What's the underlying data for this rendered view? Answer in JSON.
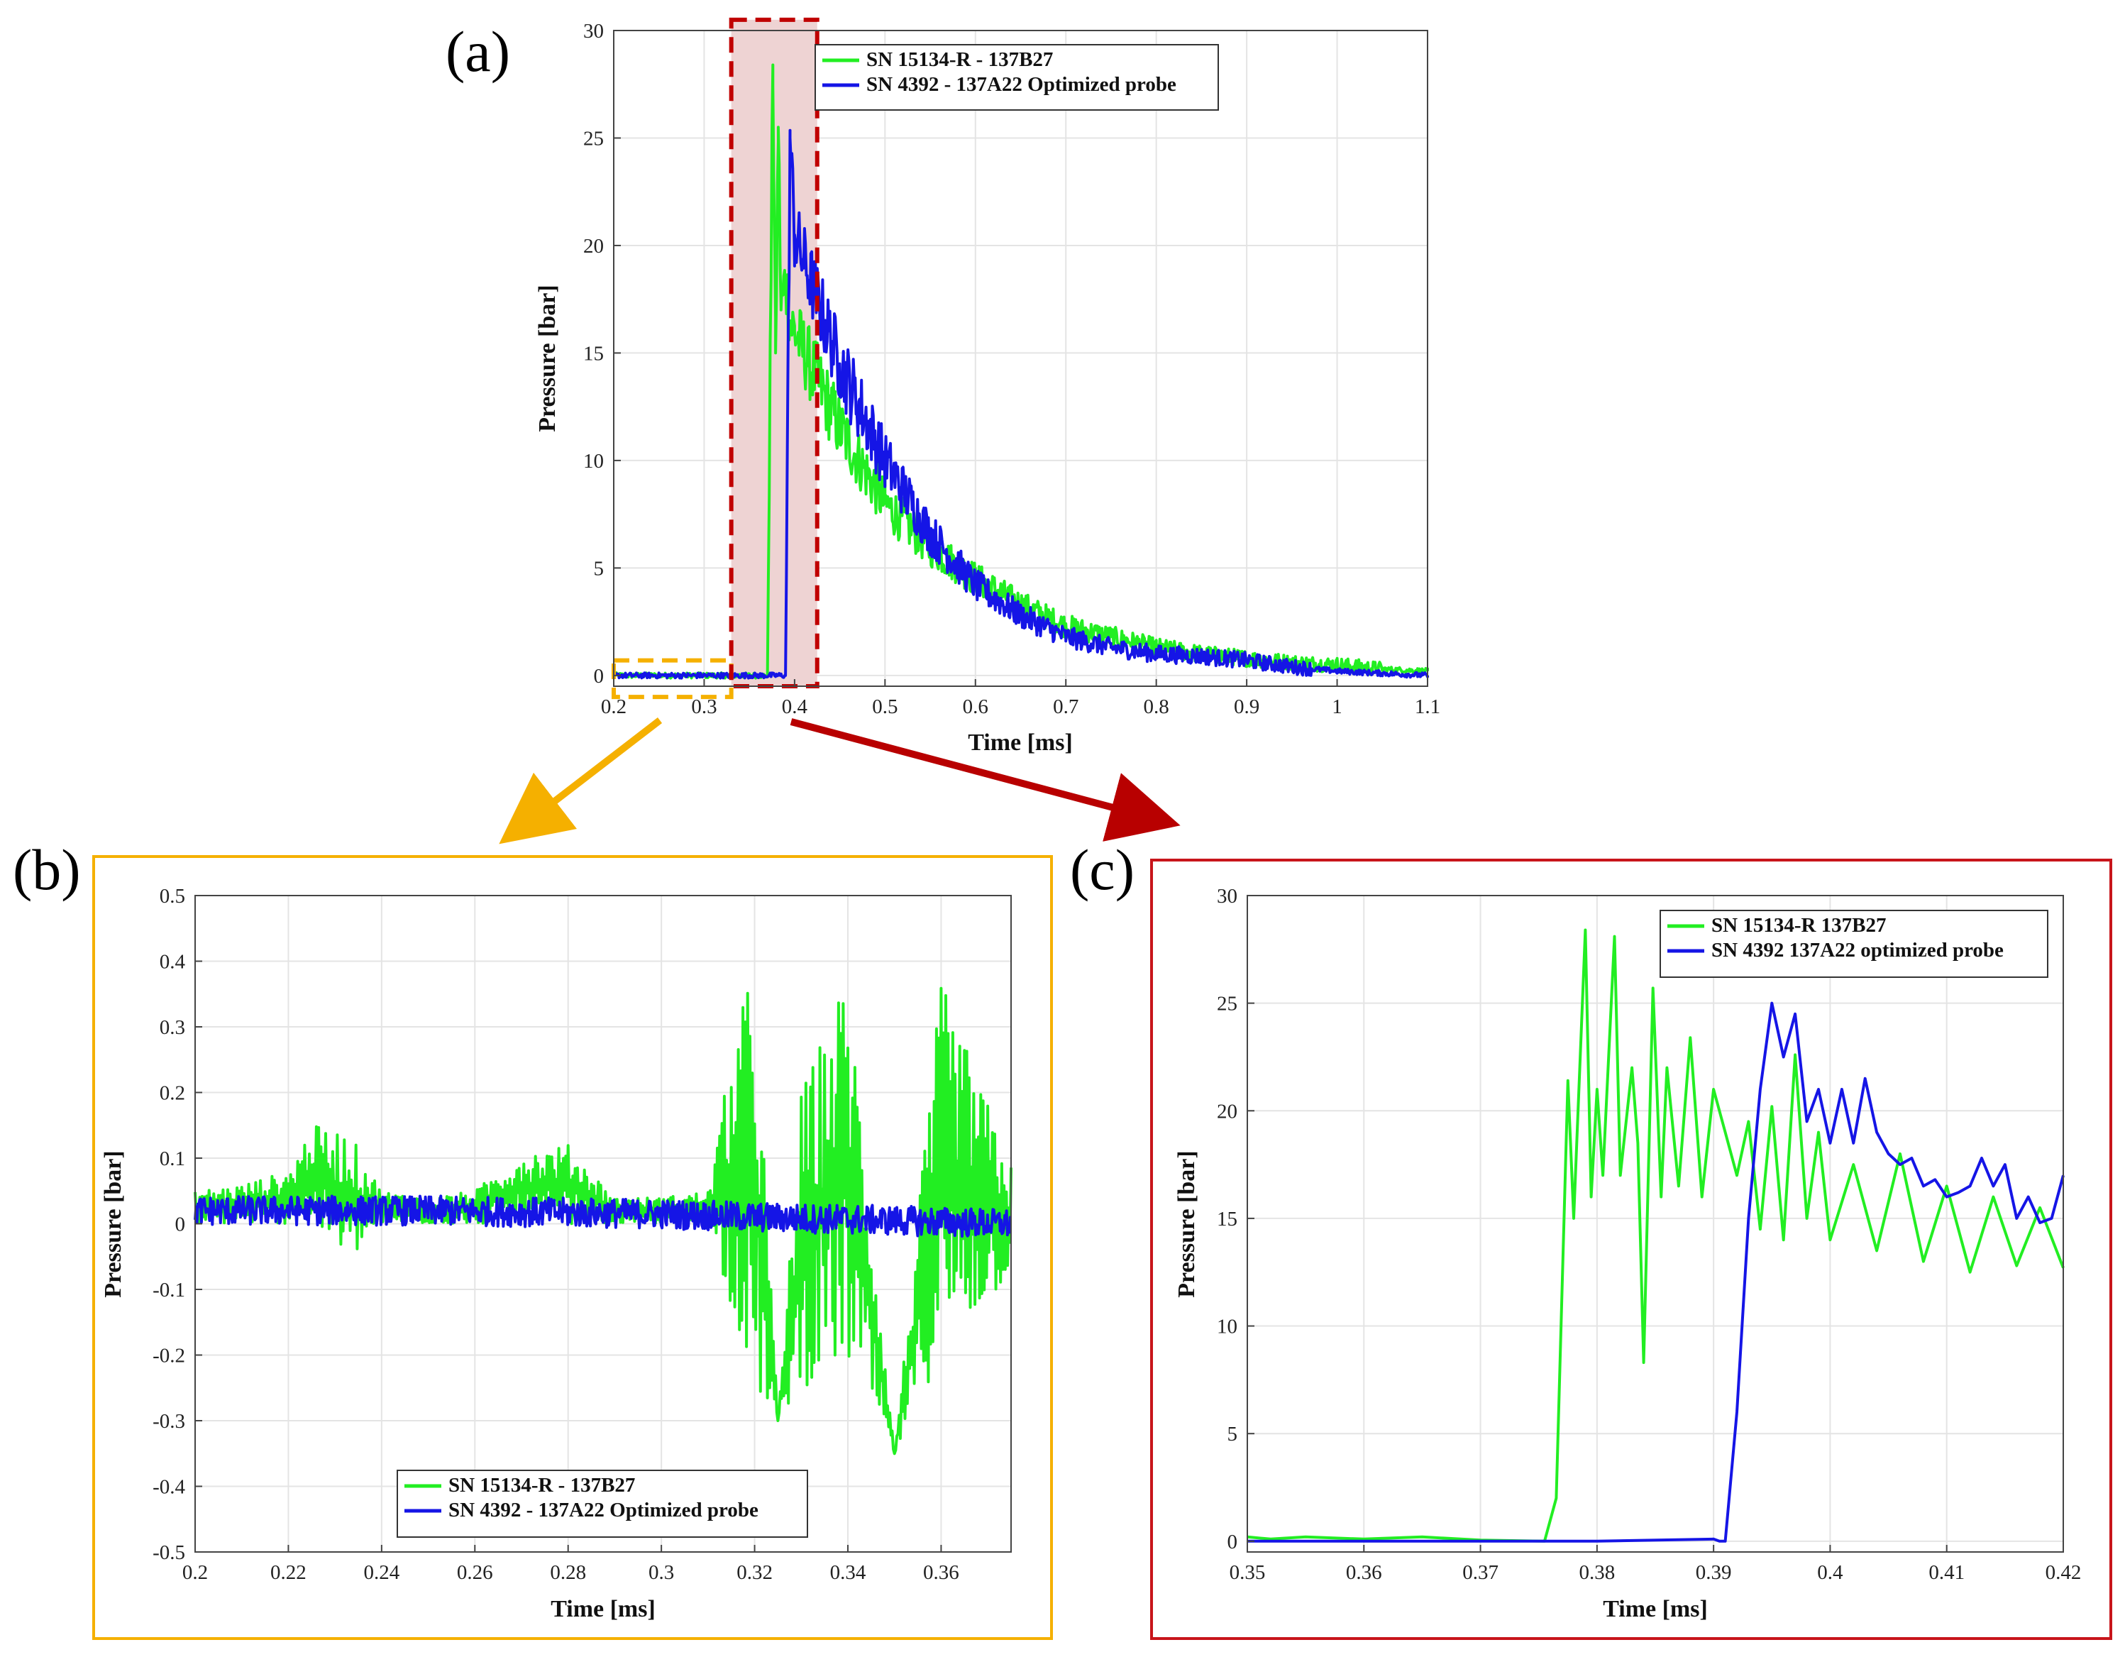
{
  "colors": {
    "series_green": "#22ee22",
    "series_blue": "#1515e6",
    "grid": "#e4e4e4",
    "axis": "#444444",
    "highlight_red": "#c00000",
    "highlight_fill": "#eed3d3",
    "highlight_orange": "#f5b000",
    "arrow_orange": "#f5b000",
    "arrow_red": "#b80000",
    "frame_orange": "#f5b000",
    "frame_red": "#c8151b"
  },
  "panels": {
    "a": {
      "label": "(a)"
    },
    "b": {
      "label": "(b)"
    },
    "c": {
      "label": "(c)"
    }
  },
  "chart_data": [
    {
      "id": "a",
      "type": "line",
      "title": "",
      "xlabel": "Time [ms]",
      "ylabel": "Pressure [bar]",
      "xlim": [
        0.2,
        1.1
      ],
      "ylim": [
        -0.5,
        30
      ],
      "xticks": [
        0.2,
        0.3,
        0.4,
        0.5,
        0.6,
        0.7,
        0.8,
        0.9,
        1,
        1.1
      ],
      "xtick_labels": [
        "0.2",
        "0.3",
        "0.4",
        "0.5",
        "0.6",
        "0.7",
        "0.8",
        "0.9",
        "1",
        "1.1"
      ],
      "yticks": [
        0,
        5,
        10,
        15,
        20,
        25,
        30
      ],
      "ytick_labels": [
        "0",
        "5",
        "10",
        "15",
        "20",
        "25",
        "30"
      ],
      "grid": true,
      "legend_position": "top-right",
      "legend": [
        "SN 15134-R - 137B27",
        "SN 4392 - 137A22 Optimized probe"
      ],
      "highlight_regions": [
        {
          "name": "zoom-b",
          "x": [
            0.2,
            0.33
          ],
          "y": [
            -1.0,
            0.7
          ],
          "color": "orange"
        },
        {
          "name": "zoom-c",
          "x": [
            0.33,
            0.425
          ],
          "y": [
            -0.5,
            30.5
          ],
          "color": "red"
        }
      ],
      "series": [
        {
          "name": "SN 15134-R - 137B27",
          "color": "green",
          "x": [
            0.2,
            0.37,
            0.376,
            0.379,
            0.382,
            0.385,
            0.39,
            0.395,
            0.4,
            0.45,
            0.5,
            0.55,
            0.6,
            0.65,
            0.7,
            0.75,
            0.8,
            0.85,
            0.9,
            0.95,
            1.0,
            1.05,
            1.1
          ],
          "y": [
            0.0,
            0.0,
            28.4,
            15.0,
            25.5,
            17.0,
            18.5,
            16.5,
            16.0,
            11.5,
            8.0,
            6.0,
            4.5,
            3.3,
            2.3,
            1.8,
            1.3,
            1.0,
            0.8,
            0.6,
            0.5,
            0.3,
            0.2
          ]
        },
        {
          "name": "SN 4392 - 137A22 Optimized probe",
          "color": "blue",
          "x": [
            0.2,
            0.39,
            0.395,
            0.4,
            0.45,
            0.5,
            0.55,
            0.6,
            0.65,
            0.7,
            0.75,
            0.8,
            0.85,
            0.9,
            0.95,
            1.0,
            1.05,
            1.1
          ],
          "y": [
            0.0,
            0.0,
            25.0,
            20.5,
            14.5,
            10.0,
            6.6,
            4.2,
            2.8,
            1.8,
            1.3,
            1.0,
            0.9,
            0.7,
            0.4,
            0.2,
            0.1,
            0.0
          ]
        }
      ]
    },
    {
      "id": "b",
      "type": "line",
      "title": "",
      "xlabel": "Time [ms]",
      "ylabel": "Pressure [bar]",
      "xlim": [
        0.2,
        0.375
      ],
      "ylim": [
        -0.5,
        0.5
      ],
      "xticks": [
        0.2,
        0.22,
        0.24,
        0.26,
        0.28,
        0.3,
        0.32,
        0.34,
        0.36
      ],
      "xtick_labels": [
        "0.2",
        "0.22",
        "0.24",
        "0.26",
        "0.28",
        "0.3",
        "0.32",
        "0.34",
        "0.36"
      ],
      "yticks": [
        -0.5,
        -0.4,
        -0.3,
        -0.2,
        -0.1,
        0,
        0.1,
        0.2,
        0.3,
        0.4,
        0.5
      ],
      "ytick_labels": [
        "-0.5",
        "-0.4",
        "-0.3",
        "-0.2",
        "-0.1",
        "0",
        "0.1",
        "0.2",
        "0.3",
        "0.4",
        "0.5"
      ],
      "grid": true,
      "legend_position": "bottom-center",
      "legend": [
        "SN 15134-R - 137B27",
        "SN 4392 - 137A22 Optimized probe"
      ],
      "series": [
        {
          "name": "SN 15134-R - 137B27",
          "color": "green",
          "x": [
            0.2,
            0.21,
            0.22,
            0.225,
            0.233,
            0.24,
            0.25,
            0.26,
            0.27,
            0.28,
            0.29,
            0.3,
            0.31,
            0.316,
            0.32,
            0.325,
            0.33,
            0.34,
            0.35,
            0.36,
            0.375
          ],
          "y": [
            0.05,
            0.06,
            0.08,
            0.15,
            0.14,
            0.05,
            0.04,
            0.05,
            0.11,
            0.12,
            0.04,
            0.04,
            0.05,
            0.3,
            0.4,
            -0.3,
            0.2,
            0.39,
            -0.35,
            0.37,
            0.09
          ],
          "y_min": [
            0.0,
            0.0,
            0.0,
            0.0,
            -0.06,
            0.0,
            0.0,
            0.0,
            0.0,
            0.0,
            0.0,
            0.0,
            0.0,
            -0.15,
            -0.26,
            -0.3,
            -0.25,
            -0.22,
            -0.35,
            -0.2,
            -0.08
          ]
        },
        {
          "name": "SN 4392 - 137A22 Optimized probe",
          "color": "blue",
          "x": [
            0.2,
            0.25,
            0.3,
            0.32,
            0.35,
            0.375
          ],
          "y": [
            0.02,
            0.02,
            0.015,
            0.01,
            0.005,
            0.0
          ]
        }
      ]
    },
    {
      "id": "c",
      "type": "line",
      "title": "",
      "xlabel": "Time [ms]",
      "ylabel": "Pressure [bar]",
      "xlim": [
        0.35,
        0.42
      ],
      "ylim": [
        -0.5,
        30
      ],
      "xticks": [
        0.35,
        0.36,
        0.37,
        0.38,
        0.39,
        0.4,
        0.41,
        0.42
      ],
      "xtick_labels": [
        "0.35",
        "0.36",
        "0.37",
        "0.38",
        "0.39",
        "0.4",
        "0.41",
        "0.42"
      ],
      "yticks": [
        0,
        5,
        10,
        15,
        20,
        25,
        30
      ],
      "ytick_labels": [
        "0",
        "5",
        "10",
        "15",
        "20",
        "25",
        "30"
      ],
      "grid": true,
      "legend_position": "top-right",
      "legend": [
        "SN 15134-R 137B27",
        "SN 4392 137A22 optimized probe"
      ],
      "series": [
        {
          "name": "SN 15134-R 137B27",
          "color": "green",
          "x": [
            0.35,
            0.352,
            0.355,
            0.36,
            0.365,
            0.37,
            0.3755,
            0.3765,
            0.3775,
            0.378,
            0.379,
            0.3795,
            0.38,
            0.3805,
            0.3815,
            0.382,
            0.383,
            0.3835,
            0.384,
            0.3848,
            0.3855,
            0.386,
            0.387,
            0.388,
            0.389,
            0.39,
            0.391,
            0.392,
            0.393,
            0.394,
            0.395,
            0.396,
            0.397,
            0.398,
            0.399,
            0.4,
            0.402,
            0.404,
            0.406,
            0.408,
            0.41,
            0.412,
            0.414,
            0.416,
            0.418,
            0.42
          ],
          "y": [
            0.2,
            0.1,
            0.2,
            0.1,
            0.2,
            0.05,
            0.0,
            2.0,
            21.4,
            15.0,
            28.4,
            16.0,
            21.0,
            17.0,
            28.1,
            17.0,
            22.0,
            18.5,
            8.3,
            25.7,
            16.0,
            22.0,
            16.5,
            23.4,
            16.0,
            21.0,
            19.0,
            17.0,
            19.5,
            14.5,
            20.2,
            14.0,
            22.6,
            15.0,
            19.0,
            14.0,
            17.5,
            13.5,
            18.0,
            13.0,
            16.5,
            12.5,
            16.0,
            12.8,
            15.5,
            12.7
          ]
        },
        {
          "name": "SN 4392 137A22 optimized probe",
          "color": "blue",
          "x": [
            0.35,
            0.36,
            0.37,
            0.38,
            0.39,
            0.3905,
            0.391,
            0.392,
            0.393,
            0.394,
            0.395,
            0.396,
            0.397,
            0.398,
            0.399,
            0.4,
            0.401,
            0.402,
            0.403,
            0.404,
            0.405,
            0.406,
            0.407,
            0.408,
            0.409,
            0.41,
            0.411,
            0.412,
            0.413,
            0.414,
            0.415,
            0.416,
            0.417,
            0.418,
            0.419,
            0.42
          ],
          "y": [
            0.0,
            0.0,
            0.0,
            0.0,
            0.1,
            0.0,
            0.0,
            6.0,
            15.0,
            21.0,
            25.0,
            22.5,
            24.5,
            19.5,
            21.0,
            18.5,
            21.0,
            18.5,
            21.5,
            19.0,
            18.0,
            17.5,
            17.8,
            16.5,
            16.8,
            16.0,
            16.2,
            16.5,
            17.8,
            16.5,
            17.5,
            15.0,
            16.0,
            14.8,
            15.0,
            17.0
          ]
        }
      ]
    }
  ]
}
